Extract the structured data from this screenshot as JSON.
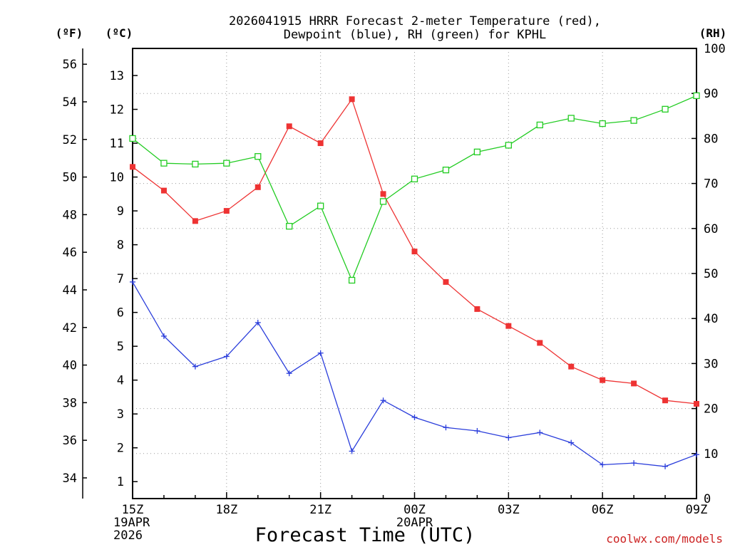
{
  "chart_data": {
    "type": "line",
    "title_lines": [
      "2026041915 HRRR Forecast 2-meter Temperature (red),",
      "Dewpoint (blue), RH (green) for KPHL"
    ],
    "unit_labels": {
      "fahrenheit": "(ºF)",
      "celsius": "(ºC)",
      "rh": "(RH)"
    },
    "xlabel": "Forecast Time (UTC)",
    "credit": "coolwx.com/models",
    "x_hours": [
      0,
      1,
      2,
      3,
      4,
      5,
      6,
      7,
      8,
      9,
      10,
      11,
      12,
      13,
      14,
      15,
      16,
      17,
      18
    ],
    "x_ticks": [
      {
        "hour": 0,
        "lines": [
          "15Z",
          "19APR",
          "2026"
        ]
      },
      {
        "hour": 3,
        "lines": [
          "18Z"
        ]
      },
      {
        "hour": 6,
        "lines": [
          "21Z"
        ]
      },
      {
        "hour": 9,
        "lines": [
          "00Z",
          "20APR"
        ]
      },
      {
        "hour": 12,
        "lines": [
          "03Z"
        ]
      },
      {
        "hour": 15,
        "lines": [
          "06Z"
        ]
      },
      {
        "hour": 18,
        "lines": [
          "09Z"
        ]
      }
    ],
    "y_celsius": {
      "range": [
        0.5,
        13.8
      ],
      "ticks": [
        1,
        2,
        3,
        4,
        5,
        6,
        7,
        8,
        9,
        10,
        11,
        12,
        13
      ]
    },
    "y_fahrenheit": {
      "ticks": [
        34,
        36,
        38,
        40,
        42,
        44,
        46,
        48,
        50,
        52,
        54,
        56
      ]
    },
    "y_rh": {
      "range": [
        0,
        100
      ],
      "ticks": [
        0,
        10,
        20,
        30,
        40,
        50,
        60,
        70,
        80,
        90,
        100
      ]
    },
    "series": [
      {
        "name": "Temperature",
        "axis": "celsius",
        "color": "#ee3333",
        "marker": "filled-square",
        "values": [
          10.3,
          9.6,
          8.7,
          9.0,
          9.7,
          11.5,
          11.0,
          12.3,
          9.5,
          7.8,
          6.9,
          6.1,
          5.6,
          5.1,
          4.4,
          4.0,
          3.9,
          3.4,
          3.3
        ]
      },
      {
        "name": "Dewpoint",
        "axis": "celsius",
        "color": "#2a3ddb",
        "marker": "plus",
        "values": [
          6.9,
          5.3,
          4.4,
          4.7,
          5.7,
          4.2,
          4.8,
          1.9,
          3.4,
          2.9,
          2.6,
          2.5,
          2.3,
          2.45,
          2.15,
          1.5,
          1.55,
          1.45,
          1.8
        ]
      },
      {
        "name": "RH",
        "axis": "rh",
        "color": "#22cc22",
        "marker": "open-square",
        "values": [
          80,
          74.5,
          74.3,
          74.5,
          76,
          60.5,
          65,
          48.5,
          66,
          71,
          73,
          77,
          78.5,
          83,
          84.5,
          83.3,
          84,
          86.5,
          89.5
        ]
      }
    ]
  }
}
